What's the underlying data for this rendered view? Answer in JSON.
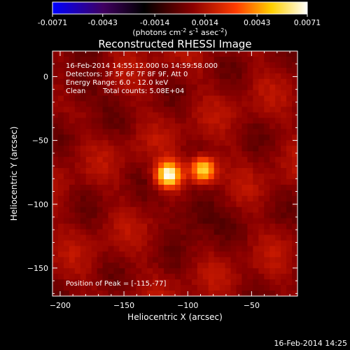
{
  "chart_data": {
    "type": "heatmap",
    "title": "Reconstructed RHESSI Image",
    "xlabel": "Heliocentric X (arcsec)",
    "ylabel": "Heliocentric Y (arcsec)",
    "xlim": [
      -206,
      -14
    ],
    "ylim": [
      -172,
      20
    ],
    "x_ticks": [
      -200,
      -150,
      -100,
      -50
    ],
    "y_ticks": [
      0,
      -50,
      -100,
      -150
    ],
    "colorbar": {
      "range": [
        -0.0071,
        0.0071
      ],
      "ticks": [
        "-0.0071",
        "-0.0043",
        "-0.0014",
        "0.0014",
        "0.0043",
        "0.0071"
      ],
      "tick_values": [
        -0.0071,
        -0.0043,
        -0.0014,
        0.0014,
        0.0043,
        0.0071
      ],
      "unit_label": "(photons cm<sup>-2</sup> s<sup>-1</sup> asec<sup>-2</sup>)",
      "colors": [
        "#0000ff",
        "#400060",
        "#000000",
        "#8a0000",
        "#ff3c00",
        "#ffd000",
        "#ffffff"
      ]
    },
    "annotations": {
      "time_range": "16-Feb-2014 14:55:12.000 to 14:59:58.000",
      "detectors": "Detectors: 3F 5F 6F 7F 8F 9F, Att 0",
      "energy": "Energy Range: 6.0 - 12.0 keV",
      "method": "Clean",
      "counts": "Total counts: 5.08E+04",
      "peak": "Position of Peak = [-115,-77]"
    },
    "sources": [
      {
        "x": -115,
        "y": -77,
        "peak": 0.0071
      },
      {
        "x": -88,
        "y": -73,
        "peak": 0.0062
      }
    ]
  },
  "footer": {
    "timestamp": "16-Feb-2014 14:25"
  }
}
